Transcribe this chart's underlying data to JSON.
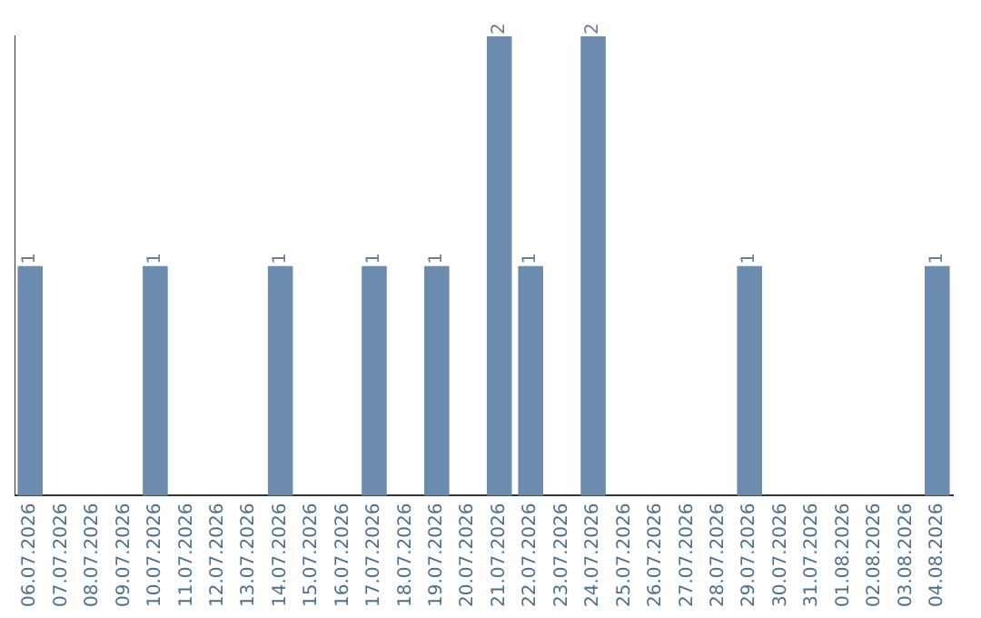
{
  "chart_data": {
    "type": "bar",
    "categories": [
      "06.07.2026",
      "07.07.2026",
      "08.07.2026",
      "09.07.2026",
      "10.07.2026",
      "11.07.2026",
      "12.07.2026",
      "13.07.2026",
      "14.07.2026",
      "15.07.2026",
      "16.07.2026",
      "17.07.2026",
      "18.07.2026",
      "19.07.2026",
      "20.07.2026",
      "21.07.2026",
      "22.07.2026",
      "23.07.2026",
      "24.07.2026",
      "25.07.2026",
      "26.07.2026",
      "27.07.2026",
      "28.07.2026",
      "29.07.2026",
      "30.07.2026",
      "31.07.2026",
      "01.08.2026",
      "02.08.2026",
      "03.08.2026",
      "04.08.2026"
    ],
    "values": [
      1,
      0,
      0,
      0,
      1,
      0,
      0,
      0,
      1,
      0,
      0,
      1,
      0,
      1,
      0,
      2,
      1,
      0,
      2,
      0,
      0,
      0,
      0,
      1,
      0,
      0,
      0,
      0,
      0,
      1
    ],
    "value_labels": [
      "1",
      null,
      null,
      null,
      "1",
      null,
      null,
      null,
      "1",
      null,
      null,
      "1",
      null,
      "1",
      null,
      "2",
      "1",
      null,
      "2",
      null,
      null,
      null,
      null,
      "1",
      null,
      null,
      null,
      null,
      null,
      "1"
    ],
    "color": "#6b8cae",
    "ylim": [
      0,
      2
    ],
    "tick_labels": "x",
    "grid": false,
    "legend": false
  }
}
